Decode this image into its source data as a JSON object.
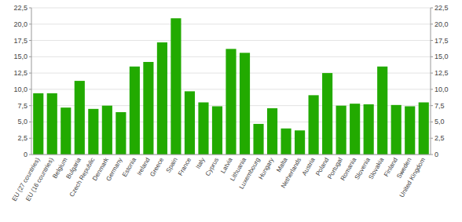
{
  "chart_data": {
    "type": "bar",
    "categories": [
      "EU (27 countries)",
      "EU (16 countries)",
      "Belgium",
      "Bulgaria",
      "Czech Republic",
      "Denmark",
      "Germany",
      "Estonia",
      "Ireland",
      "Greece",
      "Spain",
      "France",
      "Italy",
      "Cyprus",
      "Latvia",
      "Lithuania",
      "Luxembourg",
      "Hungary",
      "Malta",
      "Netherlands",
      "Austria",
      "Poland",
      "Portugal",
      "Romania",
      "Slovenia",
      "Slovakia",
      "Finland",
      "Sweden",
      "United Kingdom"
    ],
    "values": [
      9.4,
      9.4,
      7.2,
      11.3,
      7.0,
      7.5,
      6.5,
      13.5,
      14.2,
      17.2,
      20.9,
      9.7,
      8.0,
      7.4,
      16.2,
      15.6,
      4.7,
      7.1,
      4.0,
      3.7,
      9.1,
      12.5,
      7.5,
      7.8,
      7.7,
      13.5,
      7.6,
      7.4,
      8.0
    ],
    "color": "#22aa00",
    "ylim": [
      0,
      22.5
    ],
    "yticks": [
      0,
      {
        "value": 2.5,
        "label": "2,5"
      },
      {
        "value": 5.0,
        "label": "5,0"
      },
      {
        "value": 7.5,
        "label": "7,5"
      },
      {
        "value": 10.0,
        "label": "10,0"
      },
      {
        "value": 12.5,
        "label": "12,5"
      },
      {
        "value": 15.0,
        "label": "15,0"
      },
      {
        "value": 17.5,
        "label": "17,5"
      },
      {
        "value": 20.0,
        "label": "20,0"
      },
      {
        "value": 22.5,
        "label": "22,5"
      }
    ],
    "y2lim": [
      0,
      22.5
    ],
    "y2ticks": [
      0,
      {
        "value": 2.5,
        "label": "2,5"
      },
      {
        "value": 5.0,
        "label": "5,0"
      },
      {
        "value": 7.5,
        "label": "7,5"
      },
      {
        "value": 10.0,
        "label": "10,0"
      },
      {
        "value": 12.5,
        "label": "12,5"
      },
      {
        "value": 15.0,
        "label": "15,0"
      },
      {
        "value": 17.5,
        "label": "17,5"
      },
      {
        "value": 20.0,
        "label": "20,0"
      },
      {
        "value": 22.5,
        "label": "22,5"
      }
    ],
    "grid": true
  }
}
